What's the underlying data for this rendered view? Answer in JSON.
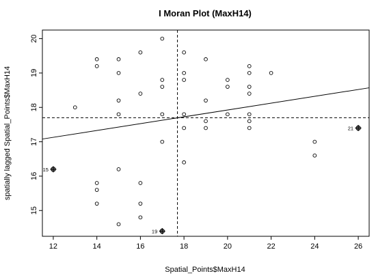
{
  "chart_data": {
    "type": "scatter",
    "title": "I Moran Plot (MaxH14)",
    "xlabel": "Spatial_Points$MaxH14",
    "ylabel": "spatially lagged Spatial_Points$MaxH14",
    "xlim": [
      11.5,
      26.5
    ],
    "ylim": [
      14.25,
      20.25
    ],
    "xticks": [
      12,
      14,
      16,
      18,
      20,
      22,
      24,
      26
    ],
    "yticks": [
      15,
      16,
      17,
      18,
      19,
      20
    ],
    "grid": false,
    "reference_lines": {
      "mean_x": 17.7,
      "mean_y": 17.7
    },
    "regression_line": {
      "x": [
        11.5,
        26.5
      ],
      "y": [
        17.08,
        18.57
      ]
    },
    "points": [
      {
        "x": 13,
        "y": 18.0
      },
      {
        "x": 14,
        "y": 19.4
      },
      {
        "x": 14,
        "y": 19.2
      },
      {
        "x": 14,
        "y": 15.8
      },
      {
        "x": 14,
        "y": 15.6
      },
      {
        "x": 14,
        "y": 15.2
      },
      {
        "x": 15,
        "y": 19.4
      },
      {
        "x": 15,
        "y": 19.0
      },
      {
        "x": 15,
        "y": 18.2
      },
      {
        "x": 15,
        "y": 17.8
      },
      {
        "x": 15,
        "y": 16.2
      },
      {
        "x": 15,
        "y": 14.6
      },
      {
        "x": 16,
        "y": 19.6
      },
      {
        "x": 16,
        "y": 18.4
      },
      {
        "x": 16,
        "y": 15.8
      },
      {
        "x": 16,
        "y": 15.2
      },
      {
        "x": 16,
        "y": 14.8
      },
      {
        "x": 17,
        "y": 20.0
      },
      {
        "x": 17,
        "y": 18.8
      },
      {
        "x": 17,
        "y": 18.6
      },
      {
        "x": 17,
        "y": 17.8
      },
      {
        "x": 17,
        "y": 17.0
      },
      {
        "x": 18,
        "y": 19.6
      },
      {
        "x": 18,
        "y": 19.0
      },
      {
        "x": 18,
        "y": 18.8
      },
      {
        "x": 18,
        "y": 17.8
      },
      {
        "x": 18,
        "y": 17.4
      },
      {
        "x": 18,
        "y": 16.4
      },
      {
        "x": 19,
        "y": 19.4
      },
      {
        "x": 19,
        "y": 18.2
      },
      {
        "x": 19,
        "y": 17.6
      },
      {
        "x": 19,
        "y": 17.4
      },
      {
        "x": 20,
        "y": 18.8
      },
      {
        "x": 20,
        "y": 18.6
      },
      {
        "x": 20,
        "y": 17.8
      },
      {
        "x": 21,
        "y": 19.2
      },
      {
        "x": 21,
        "y": 19.0
      },
      {
        "x": 21,
        "y": 18.6
      },
      {
        "x": 21,
        "y": 18.4
      },
      {
        "x": 21,
        "y": 17.8
      },
      {
        "x": 21,
        "y": 17.6
      },
      {
        "x": 21,
        "y": 17.4
      },
      {
        "x": 22,
        "y": 19.0
      },
      {
        "x": 24,
        "y": 17.0
      },
      {
        "x": 24,
        "y": 16.6
      }
    ],
    "influential_points": [
      {
        "x": 12,
        "y": 16.2,
        "label": "15"
      },
      {
        "x": 17,
        "y": 14.4,
        "label": "19"
      },
      {
        "x": 26,
        "y": 17.4,
        "label": "21"
      }
    ]
  }
}
